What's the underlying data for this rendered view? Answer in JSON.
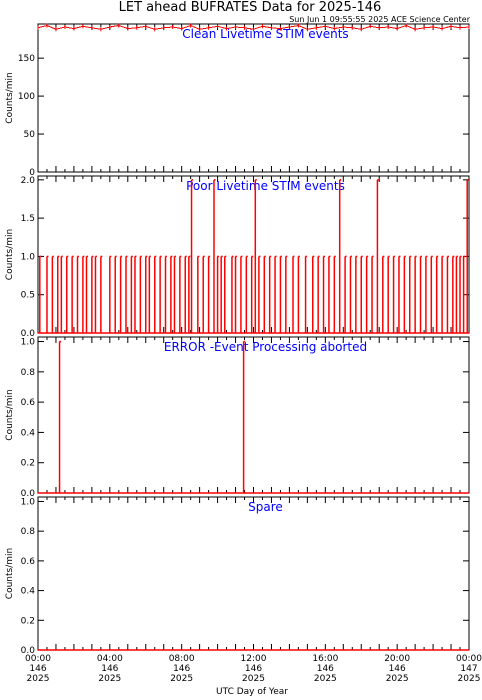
{
  "figure": {
    "title": "LET ahead BUFRATES Data for 2025-146",
    "timestamp": "Sun Jun  1 09:55:55 2025 ACE Science Center",
    "xlabel": "UTC Day of Year"
  },
  "colors": {
    "series": "#ff0000",
    "panel_label": "#0000ff",
    "axis": "#000000"
  },
  "chart_data": [
    {
      "type": "line",
      "title": "Clean Livetime STIM events",
      "ylabel": "Counts/min",
      "xlim": [
        0,
        24
      ],
      "ylim": [
        0,
        195
      ],
      "yticks": [
        0,
        50,
        100,
        150
      ],
      "ytick_labels": [
        "0",
        "50",
        "100",
        "150"
      ],
      "series": [
        {
          "values_note": "",
          "x": [
            0,
            0.5,
            1,
            1.5,
            2,
            2.5,
            3,
            3.5,
            4,
            4.5,
            5,
            5.5,
            6,
            6.5,
            7,
            7.5,
            8,
            8.5,
            9,
            9.5,
            10,
            10.5,
            11,
            11.5,
            12,
            12.5,
            13,
            13.5,
            14,
            14.5,
            15,
            15.5,
            16,
            16.5,
            17,
            17.5,
            18,
            18.5,
            19,
            19.5,
            20,
            20.5,
            21,
            21.5,
            22,
            22.5,
            23,
            23.5,
            24
          ],
          "y": [
            190,
            193,
            188,
            191,
            189,
            192,
            190,
            188,
            191,
            193,
            189,
            190,
            192,
            188,
            190,
            191,
            189,
            193,
            188,
            190,
            192,
            189,
            191,
            190,
            188,
            192,
            190,
            189,
            191,
            193,
            188,
            190,
            192,
            189,
            191,
            190,
            188,
            192,
            190,
            191,
            189,
            193,
            188,
            190,
            191,
            189,
            192,
            190,
            191
          ]
        }
      ]
    },
    {
      "type": "line",
      "title": "Poor Livetime STIM events",
      "ylabel": "Counts/min",
      "xlim": [
        0,
        24
      ],
      "ylim": [
        0,
        2.05
      ],
      "yticks": [
        0,
        0.5,
        1,
        1.5,
        2
      ],
      "ytick_labels": [
        "0.0",
        "0.5",
        "1.0",
        "1.5",
        "2.0"
      ],
      "spikes": [
        [
          0.1,
          1
        ],
        [
          0.5,
          1
        ],
        [
          0.8,
          1
        ],
        [
          1.1,
          1
        ],
        [
          1.3,
          1
        ],
        [
          1.6,
          1
        ],
        [
          1.9,
          1
        ],
        [
          2.2,
          1
        ],
        [
          2.5,
          1
        ],
        [
          2.7,
          1
        ],
        [
          3.0,
          1
        ],
        [
          3.2,
          1
        ],
        [
          3.5,
          1
        ],
        [
          4.0,
          1
        ],
        [
          4.3,
          1
        ],
        [
          4.6,
          1
        ],
        [
          4.9,
          1
        ],
        [
          5.2,
          1
        ],
        [
          5.4,
          1
        ],
        [
          5.7,
          1
        ],
        [
          6.0,
          1
        ],
        [
          6.2,
          1
        ],
        [
          6.5,
          1
        ],
        [
          6.8,
          1
        ],
        [
          7.1,
          1
        ],
        [
          7.4,
          1
        ],
        [
          7.6,
          1
        ],
        [
          7.9,
          1
        ],
        [
          8.2,
          1
        ],
        [
          8.4,
          1
        ],
        [
          8.55,
          2
        ],
        [
          8.9,
          1
        ],
        [
          9.2,
          1
        ],
        [
          9.5,
          1
        ],
        [
          9.8,
          2
        ],
        [
          10.0,
          1
        ],
        [
          10.2,
          1
        ],
        [
          10.4,
          1
        ],
        [
          10.8,
          1
        ],
        [
          11.0,
          1
        ],
        [
          11.3,
          1
        ],
        [
          11.6,
          1
        ],
        [
          11.9,
          1
        ],
        [
          12.1,
          2
        ],
        [
          12.3,
          1
        ],
        [
          12.6,
          1
        ],
        [
          12.9,
          1
        ],
        [
          13.2,
          1
        ],
        [
          13.5,
          1
        ],
        [
          13.8,
          1
        ],
        [
          14.2,
          1
        ],
        [
          14.5,
          1
        ],
        [
          14.9,
          1
        ],
        [
          15.3,
          1
        ],
        [
          15.6,
          1
        ],
        [
          15.9,
          1
        ],
        [
          16.2,
          1
        ],
        [
          16.5,
          1
        ],
        [
          16.8,
          2
        ],
        [
          17.1,
          1
        ],
        [
          17.4,
          1
        ],
        [
          17.7,
          1
        ],
        [
          18.0,
          1
        ],
        [
          18.3,
          1
        ],
        [
          18.6,
          1
        ],
        [
          18.9,
          2
        ],
        [
          19.2,
          1
        ],
        [
          19.5,
          1
        ],
        [
          19.8,
          1
        ],
        [
          20.1,
          1
        ],
        [
          20.4,
          1
        ],
        [
          20.7,
          1
        ],
        [
          21.0,
          1
        ],
        [
          21.3,
          1
        ],
        [
          21.6,
          1
        ],
        [
          21.9,
          1
        ],
        [
          22.2,
          1
        ],
        [
          22.5,
          1
        ],
        [
          22.8,
          1
        ],
        [
          23.1,
          1
        ],
        [
          23.3,
          1
        ],
        [
          23.5,
          1
        ],
        [
          23.7,
          1
        ],
        [
          23.9,
          2
        ]
      ]
    },
    {
      "type": "line",
      "title": "ERROR -Event Processing aborted",
      "ylabel": "Counts/min",
      "xlim": [
        0,
        24
      ],
      "ylim": [
        0,
        1.03
      ],
      "yticks": [
        0,
        0.2,
        0.4,
        0.6,
        0.8,
        1.0
      ],
      "ytick_labels": [
        "0.0",
        "0.2",
        "0.4",
        "0.6",
        "0.8",
        "1.0"
      ],
      "spikes": [
        [
          1.2,
          1
        ],
        [
          11.45,
          1
        ]
      ]
    },
    {
      "type": "line",
      "title": "Spare",
      "ylabel": "Counts/min",
      "xlim": [
        0,
        24
      ],
      "ylim": [
        0,
        1.03
      ],
      "yticks": [
        0,
        0.2,
        0.4,
        0.6,
        0.8,
        1.0
      ],
      "ytick_labels": [
        "0.0",
        "0.2",
        "0.4",
        "0.6",
        "0.8",
        "1.0"
      ],
      "spikes": []
    }
  ],
  "xaxis": {
    "ticks": [
      0,
      4,
      8,
      12,
      16,
      20,
      24
    ],
    "labels": [
      [
        "00:00",
        "146",
        "2025"
      ],
      [
        "04:00",
        "146",
        "2025"
      ],
      [
        "08:00",
        "146",
        "2025"
      ],
      [
        "12:00",
        "146",
        "2025"
      ],
      [
        "16:00",
        "146",
        "2025"
      ],
      [
        "20:00",
        "146",
        "2025"
      ],
      [
        "00:00",
        "147",
        "2025"
      ]
    ]
  }
}
